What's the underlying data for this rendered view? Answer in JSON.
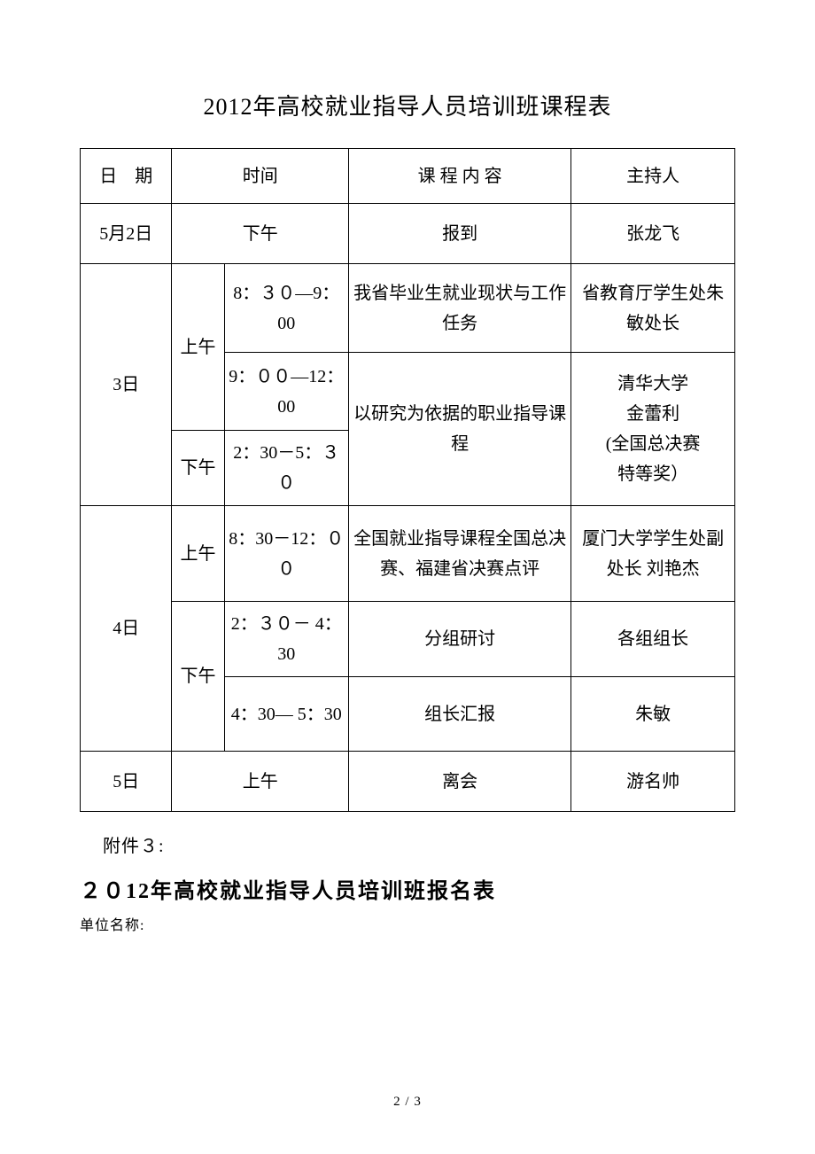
{
  "title": "2012年高校就业指导人员培训班课程表",
  "headers": {
    "date": "日　期",
    "time": "时间",
    "content": "课 程 内 容",
    "host": "主持人"
  },
  "rows": {
    "may2": {
      "date": "5月2日",
      "time": "下午",
      "content": "报到",
      "host": "张龙飞"
    },
    "may3": {
      "date": "3日",
      "am": "上午",
      "pm": "下午",
      "slot1": {
        "time": "8：３０—9：00",
        "content": "我省毕业生就业现状与工作任务",
        "host": "省教育厅学生处朱敏处长"
      },
      "slot2": {
        "time": "9：００—12：00",
        "content": "以研究为依据的职业指导课程",
        "host": "清华大学\n金蕾利\n(全国总决赛\n特等奖）"
      },
      "slot3": {
        "time": "2：30－5：３０"
      }
    },
    "may4": {
      "date": "4日",
      "am": "上午",
      "pm": "下午",
      "slot1": {
        "time": "8：30－12：００",
        "content": "全国就业指导课程全国总决赛、福建省决赛点评",
        "host": "厦门大学学生处副处长 刘艳杰"
      },
      "slot2": {
        "time": "2：３０－ 4：30",
        "content": "分组研讨",
        "host": "各组组长"
      },
      "slot3": {
        "time": "4：30— 5：30",
        "content": "组长汇报",
        "host": "朱敏"
      }
    },
    "may5": {
      "date": "5日",
      "time": "上午",
      "content": "离会",
      "host": "游名帅"
    }
  },
  "attachment": "附件３:",
  "subtitle": "２０12年高校就业指导人员培训班报名表",
  "unitLabel": "单位名称:",
  "pageNumber": "2 / 3"
}
